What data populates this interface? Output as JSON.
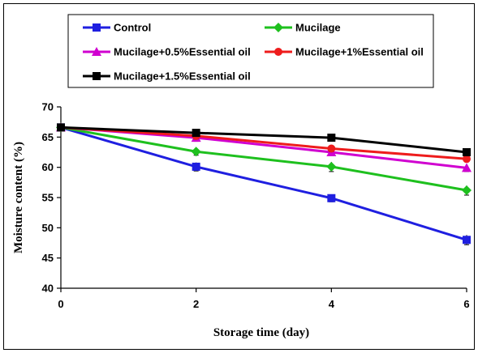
{
  "chart_data": {
    "type": "line",
    "xlabel": "Storage time (day)",
    "ylabel": "Moisture content (%)",
    "x": [
      0,
      2,
      4,
      6
    ],
    "xlim": [
      0,
      6
    ],
    "ylim": [
      40,
      70
    ],
    "x_ticks": [
      "0",
      "2",
      "4",
      "6"
    ],
    "y_ticks": [
      "40",
      "45",
      "50",
      "55",
      "60",
      "65",
      "70"
    ],
    "grid": false,
    "legend_position": "top",
    "series": [
      {
        "name": "Control",
        "values": [
          66.6,
          60.1,
          54.9,
          48.0
        ],
        "errors": [
          0.6,
          0.7,
          0.6,
          0.8
        ],
        "color": "#1f1fe0",
        "marker": "square"
      },
      {
        "name": "Mucilage",
        "values": [
          66.6,
          62.6,
          60.1,
          56.2
        ],
        "errors": [
          0.6,
          0.6,
          0.8,
          0.8
        ],
        "color": "#1ec01e",
        "marker": "diamond"
      },
      {
        "name": "Mucilage+0.5%Essential oil",
        "values": [
          66.6,
          64.9,
          62.5,
          59.9
        ],
        "errors": [
          0.6,
          0.6,
          0.6,
          0.6
        ],
        "color": "#d000d0",
        "marker": "triangle"
      },
      {
        "name": "Mucilage+1%Essential oil",
        "values": [
          66.6,
          65.2,
          63.1,
          61.4
        ],
        "errors": [
          0.5,
          0.5,
          0.5,
          0.5
        ],
        "color": "#ee1c1c",
        "marker": "circle"
      },
      {
        "name": "Mucilage+1.5%Essential oil",
        "values": [
          66.6,
          65.7,
          64.9,
          62.5
        ],
        "errors": [
          0.5,
          0.5,
          0.5,
          0.5
        ],
        "color": "#000000",
        "marker": "square"
      }
    ]
  }
}
